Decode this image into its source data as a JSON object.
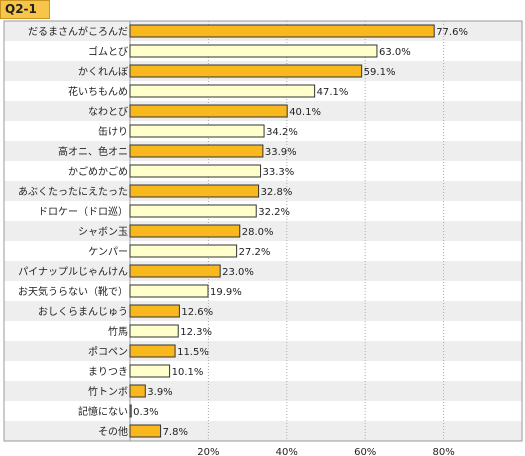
{
  "chart_data": {
    "type": "bar",
    "orientation": "horizontal",
    "title": "Q2-1",
    "categories": [
      "だるまさんがころんだ",
      "ゴムとび",
      "かくれんぼ",
      "花いちもんめ",
      "なわとび",
      "缶けり",
      "高オニ、色オニ",
      "かごめかごめ",
      "あぶくたったにえたった",
      "ドロケー（ドロ巡）",
      "シャボン玉",
      "ケンパー",
      "パイナップルじゃんけん",
      "お天気うらない（靴で）",
      "おしくらまんじゅう",
      "竹馬",
      "ポコペン",
      "まりつき",
      "竹トンボ",
      "記憶にない",
      "その他"
    ],
    "values": [
      77.6,
      63.0,
      59.1,
      47.1,
      40.1,
      34.2,
      33.9,
      33.3,
      32.8,
      32.2,
      28.0,
      27.2,
      23.0,
      19.9,
      12.6,
      12.3,
      11.5,
      10.1,
      3.9,
      0.3,
      7.8
    ],
    "value_labels": [
      "77.6%",
      "63.0%",
      "59.1%",
      "47.1%",
      "40.1%",
      "34.2%",
      "33.9%",
      "33.3%",
      "32.8%",
      "32.2%",
      "28.0%",
      "27.2%",
      "23.0%",
      "19.9%",
      "12.6%",
      "12.3%",
      "11.5%",
      "10.1%",
      "3.9%",
      "0.3%",
      "7.8%"
    ],
    "xlim": [
      0,
      100
    ],
    "xticks": [
      20,
      40,
      60,
      80
    ],
    "xtick_labels": [
      "20%",
      "40%",
      "60%",
      "80%"
    ],
    "grid": true,
    "colors": {
      "bar_gold": "#f9b81d",
      "bar_cream": "#ffffcc",
      "bar_edge": "#333333",
      "row_alt": "#eeeeee",
      "title_bg": "#f7c54a"
    }
  }
}
